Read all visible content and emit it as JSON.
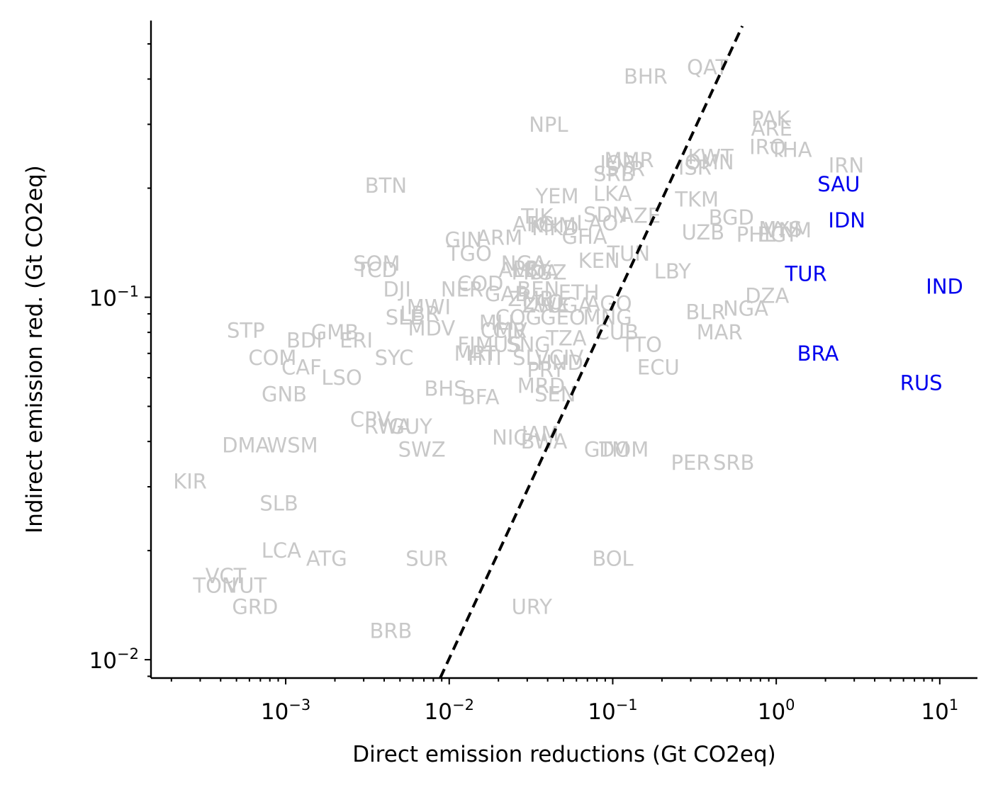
{
  "chart_data": {
    "type": "scatter",
    "title": "",
    "xlabel": "Direct emission reductions (Gt CO2eq)",
    "ylabel": "Indirect emission red. (Gt CO2eq)",
    "xscale": "log",
    "yscale": "log",
    "xlim": [
      0.00015,
      17
    ],
    "ylim": [
      0.0089,
      0.58
    ],
    "x_ticks": [
      {
        "value": 0.001,
        "base": "10",
        "exp": "−3"
      },
      {
        "value": 0.01,
        "base": "10",
        "exp": "−2"
      },
      {
        "value": 0.1,
        "base": "10",
        "exp": "−1"
      },
      {
        "value": 1,
        "base": "10",
        "exp": "0"
      },
      {
        "value": 10,
        "base": "10",
        "exp": "1"
      }
    ],
    "y_ticks": [
      {
        "value": 0.01,
        "base": "10",
        "exp": "−2"
      },
      {
        "value": 0.1,
        "base": "10",
        "exp": "−1"
      }
    ],
    "reference_line": {
      "style": "dashed",
      "color": "#000000",
      "points": [
        [
          0.0088,
          0.0089
        ],
        [
          0.62,
          0.56
        ]
      ]
    },
    "highlight_color": "#0000ee",
    "default_color": "#c8c8c8",
    "points": [
      {
        "label": "KIR",
        "x": 0.00026,
        "y": 0.031
      },
      {
        "label": "STP",
        "x": 0.00057,
        "y": 0.081
      },
      {
        "label": "DMA",
        "x": 0.00057,
        "y": 0.039
      },
      {
        "label": "WSM",
        "x": 0.0011,
        "y": 0.039
      },
      {
        "label": "SLB",
        "x": 0.00091,
        "y": 0.027
      },
      {
        "label": "LCA",
        "x": 0.00094,
        "y": 0.02
      },
      {
        "label": "ATG",
        "x": 0.00178,
        "y": 0.019
      },
      {
        "label": "VCT",
        "x": 0.00043,
        "y": 0.017
      },
      {
        "label": "VUT",
        "x": 0.00057,
        "y": 0.016
      },
      {
        "label": "TON",
        "x": 0.00037,
        "y": 0.016
      },
      {
        "label": "GRD",
        "x": 0.00065,
        "y": 0.014
      },
      {
        "label": "BRB",
        "x": 0.0044,
        "y": 0.012
      },
      {
        "label": "SUR",
        "x": 0.0073,
        "y": 0.019
      },
      {
        "label": "URY",
        "x": 0.032,
        "y": 0.014
      },
      {
        "label": "BOL",
        "x": 0.1,
        "y": 0.019
      },
      {
        "label": "BDI",
        "x": 0.0013,
        "y": 0.076
      },
      {
        "label": "COM",
        "x": 0.00083,
        "y": 0.068
      },
      {
        "label": "CAF",
        "x": 0.00125,
        "y": 0.064
      },
      {
        "label": "LSO",
        "x": 0.0022,
        "y": 0.06
      },
      {
        "label": "GNB",
        "x": 0.00098,
        "y": 0.054
      },
      {
        "label": "GMB",
        "x": 0.002,
        "y": 0.08
      },
      {
        "label": "ERI",
        "x": 0.0027,
        "y": 0.076
      },
      {
        "label": "SYC",
        "x": 0.0046,
        "y": 0.068
      },
      {
        "label": "CPV",
        "x": 0.0033,
        "y": 0.046
      },
      {
        "label": "RWA",
        "x": 0.0042,
        "y": 0.044
      },
      {
        "label": "GUY",
        "x": 0.0058,
        "y": 0.044
      },
      {
        "label": "SWZ",
        "x": 0.0068,
        "y": 0.038
      },
      {
        "label": "BHS",
        "x": 0.0095,
        "y": 0.056
      },
      {
        "label": "BFA",
        "x": 0.0155,
        "y": 0.053
      },
      {
        "label": "NIC",
        "x": 0.0235,
        "y": 0.041
      },
      {
        "label": "JAM",
        "x": 0.036,
        "y": 0.042
      },
      {
        "label": "BWA",
        "x": 0.038,
        "y": 0.04
      },
      {
        "label": "GTM",
        "x": 0.092,
        "y": 0.038
      },
      {
        "label": "DOM",
        "x": 0.117,
        "y": 0.038
      },
      {
        "label": "PER",
        "x": 0.3,
        "y": 0.035
      },
      {
        "label": "SRB",
        "x": 0.55,
        "y": 0.035
      },
      {
        "label": "ECU",
        "x": 0.19,
        "y": 0.064
      },
      {
        "label": "TTO",
        "x": 0.15,
        "y": 0.074
      },
      {
        "label": "MAR",
        "x": 0.45,
        "y": 0.08
      },
      {
        "label": "BLR",
        "x": 0.37,
        "y": 0.091
      },
      {
        "label": "NGA",
        "x": 0.65,
        "y": 0.093
      },
      {
        "label": "DZA",
        "x": 0.88,
        "y": 0.101
      },
      {
        "label": "SOM",
        "x": 0.0036,
        "y": 0.124
      },
      {
        "label": "TCD",
        "x": 0.0036,
        "y": 0.119
      },
      {
        "label": "DJI",
        "x": 0.0048,
        "y": 0.105
      },
      {
        "label": "NER",
        "x": 0.012,
        "y": 0.105
      },
      {
        "label": "COD",
        "x": 0.0155,
        "y": 0.109
      },
      {
        "label": "MWI",
        "x": 0.0075,
        "y": 0.094
      },
      {
        "label": "SLE",
        "x": 0.0053,
        "y": 0.088
      },
      {
        "label": "LBR",
        "x": 0.0066,
        "y": 0.09
      },
      {
        "label": "MDV",
        "x": 0.0078,
        "y": 0.082
      },
      {
        "label": "FJI",
        "x": 0.0133,
        "y": 0.074
      },
      {
        "label": "MLI",
        "x": 0.0195,
        "y": 0.085
      },
      {
        "label": "MUS",
        "x": 0.02,
        "y": 0.074
      },
      {
        "label": "MRT",
        "x": 0.0145,
        "y": 0.07
      },
      {
        "label": "HTI",
        "x": 0.0165,
        "y": 0.068
      },
      {
        "label": "CMR",
        "x": 0.0215,
        "y": 0.081
      },
      {
        "label": "CIV",
        "x": 0.0235,
        "y": 0.081
      },
      {
        "label": "COG",
        "x": 0.0265,
        "y": 0.088
      },
      {
        "label": "SNG",
        "x": 0.0305,
        "y": 0.074
      },
      {
        "label": "SLV",
        "x": 0.0315,
        "y": 0.068
      },
      {
        "label": "TZA",
        "x": 0.052,
        "y": 0.077
      },
      {
        "label": "PRY",
        "x": 0.039,
        "y": 0.063
      },
      {
        "label": "HND",
        "x": 0.0475,
        "y": 0.066
      },
      {
        "label": "CIV",
        "x": 0.052,
        "y": 0.068
      },
      {
        "label": "MRD",
        "x": 0.0365,
        "y": 0.057
      },
      {
        "label": "SEN",
        "x": 0.0445,
        "y": 0.054
      },
      {
        "label": "GEO",
        "x": 0.0495,
        "y": 0.088
      },
      {
        "label": "MNG",
        "x": 0.093,
        "y": 0.088
      },
      {
        "label": "CUB",
        "x": 0.106,
        "y": 0.08
      },
      {
        "label": "ZMB",
        "x": 0.0315,
        "y": 0.099
      },
      {
        "label": "ZWE",
        "x": 0.039,
        "y": 0.095
      },
      {
        "label": "ETH",
        "x": 0.062,
        "y": 0.103
      },
      {
        "label": "GAB",
        "x": 0.0225,
        "y": 0.102
      },
      {
        "label": "BEN",
        "x": 0.035,
        "y": 0.105
      },
      {
        "label": "LAO",
        "x": 0.0375,
        "y": 0.097
      },
      {
        "label": "UGA",
        "x": 0.0545,
        "y": 0.095
      },
      {
        "label": "AGO",
        "x": 0.095,
        "y": 0.096
      },
      {
        "label": "MDA",
        "x": 0.0335,
        "y": 0.117
      },
      {
        "label": "KGZ",
        "x": 0.0385,
        "y": 0.117
      },
      {
        "label": "ALB",
        "x": 0.0265,
        "y": 0.119
      },
      {
        "label": "NGA",
        "x": 0.0285,
        "y": 0.124
      },
      {
        "label": "PRY",
        "x": 0.032,
        "y": 0.12
      },
      {
        "label": "KEN",
        "x": 0.0825,
        "y": 0.126
      },
      {
        "label": "TUN",
        "x": 0.125,
        "y": 0.132
      },
      {
        "label": "LBY",
        "x": 0.232,
        "y": 0.118
      },
      {
        "label": "GIN",
        "x": 0.0122,
        "y": 0.144
      },
      {
        "label": "TGO",
        "x": 0.0133,
        "y": 0.132
      },
      {
        "label": "ARM",
        "x": 0.0203,
        "y": 0.146
      },
      {
        "label": "TJK",
        "x": 0.0345,
        "y": 0.167
      },
      {
        "label": "AFG",
        "x": 0.0327,
        "y": 0.159
      },
      {
        "label": "KHM",
        "x": 0.043,
        "y": 0.158
      },
      {
        "label": "MKD",
        "x": 0.0445,
        "y": 0.155
      },
      {
        "label": "GHA",
        "x": 0.0672,
        "y": 0.147
      },
      {
        "label": "SDN",
        "x": 0.0903,
        "y": 0.169
      },
      {
        "label": "LAO",
        "x": 0.0805,
        "y": 0.16
      },
      {
        "label": "AZE",
        "x": 0.147,
        "y": 0.168
      },
      {
        "label": "YEM",
        "x": 0.0457,
        "y": 0.19
      },
      {
        "label": "LKA",
        "x": 0.0997,
        "y": 0.193
      },
      {
        "label": "SYR",
        "x": 0.119,
        "y": 0.226
      },
      {
        "label": "SRB",
        "x": 0.102,
        "y": 0.219
      },
      {
        "label": "MMR",
        "x": 0.126,
        "y": 0.239
      },
      {
        "label": "JOR",
        "x": 0.108,
        "y": 0.234
      },
      {
        "label": "ISR",
        "x": 0.318,
        "y": 0.228
      },
      {
        "label": "KWT",
        "x": 0.397,
        "y": 0.244
      },
      {
        "label": "OMN",
        "x": 0.39,
        "y": 0.236
      },
      {
        "label": "TKM",
        "x": 0.327,
        "y": 0.186
      },
      {
        "label": "BGD",
        "x": 0.531,
        "y": 0.166
      },
      {
        "label": "UZB",
        "x": 0.357,
        "y": 0.151
      },
      {
        "label": "PHL",
        "x": 0.751,
        "y": 0.149
      },
      {
        "label": "MYS",
        "x": 1.06,
        "y": 0.154
      },
      {
        "label": "EGY",
        "x": 1.02,
        "y": 0.149
      },
      {
        "label": "VNM",
        "x": 1.18,
        "y": 0.153
      },
      {
        "label": "IRQ",
        "x": 0.885,
        "y": 0.26
      },
      {
        "label": "THA",
        "x": 1.23,
        "y": 0.255
      },
      {
        "label": "PAK",
        "x": 0.925,
        "y": 0.311
      },
      {
        "label": "ARE",
        "x": 0.939,
        "y": 0.292
      },
      {
        "label": "IRN",
        "x": 2.68,
        "y": 0.231
      },
      {
        "label": "BHR",
        "x": 0.159,
        "y": 0.406
      },
      {
        "label": "QAT",
        "x": 0.38,
        "y": 0.431
      },
      {
        "label": "NPL",
        "x": 0.0405,
        "y": 0.299
      },
      {
        "label": "BTN",
        "x": 0.0041,
        "y": 0.203
      },
      {
        "label": "SAU",
        "x": 2.41,
        "y": 0.205,
        "highlight": true
      },
      {
        "label": "IDN",
        "x": 2.7,
        "y": 0.163,
        "highlight": true
      },
      {
        "label": "TUR",
        "x": 1.52,
        "y": 0.116,
        "highlight": true
      },
      {
        "label": "IND",
        "x": 10.7,
        "y": 0.107,
        "highlight": true
      },
      {
        "label": "BRA",
        "x": 1.8,
        "y": 0.07,
        "highlight": true
      },
      {
        "label": "RUS",
        "x": 7.7,
        "y": 0.058,
        "highlight": true
      }
    ]
  }
}
